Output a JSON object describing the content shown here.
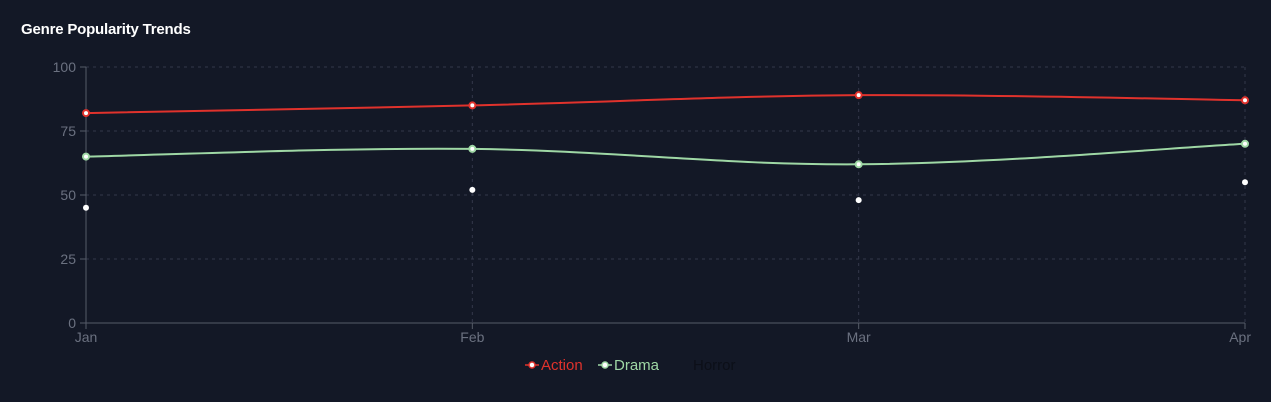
{
  "title": "Genre Popularity Trends",
  "chart_data": {
    "type": "line",
    "categories": [
      "Jan",
      "Feb",
      "Mar",
      "Apr"
    ],
    "ylim": [
      0,
      100
    ],
    "yticks": [
      0,
      25,
      50,
      75,
      100
    ],
    "grid": true,
    "legend_position": "bottom",
    "series": [
      {
        "name": "Action",
        "values": [
          82,
          85,
          89,
          87
        ],
        "color": "#e0322c",
        "line": true
      },
      {
        "name": "Drama",
        "values": [
          65,
          68,
          62,
          70
        ],
        "color": "#9fd8a5",
        "line": true
      },
      {
        "name": "Horror",
        "values": [
          45,
          52,
          48,
          55
        ],
        "color": "#ffffff",
        "line": false,
        "legend_color": "#0c0f18"
      }
    ]
  },
  "colors": {
    "background": "#131826",
    "grid": "#33384a",
    "axis": "#565b68",
    "tick_text": "#6b7180"
  }
}
